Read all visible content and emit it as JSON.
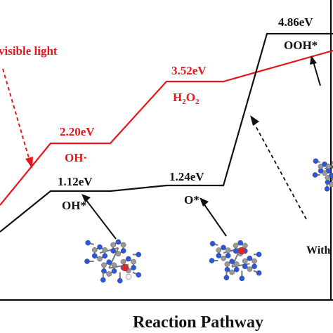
{
  "chart_data": {
    "type": "line",
    "style": "energy-step-diagram",
    "xlabel": "Reaction Pathway",
    "ylabel": "",
    "grid": false,
    "series": [
      {
        "color": "#e8161b",
        "levels": [
          {
            "value": 2.2,
            "energy_label": "2.20eV",
            "species_label": "OH·"
          },
          {
            "value": 3.52,
            "energy_label": "3.52eV",
            "species_label": "H2O2"
          }
        ]
      },
      {
        "color": "#111111",
        "levels": [
          {
            "value": 1.12,
            "energy_label": "1.12eV",
            "species_label": "OH*"
          },
          {
            "value": 1.24,
            "energy_label": "1.24eV",
            "species_label": "O*"
          },
          {
            "value": 4.86,
            "energy_label": "4.86eV",
            "species_label": "OOH*"
          }
        ]
      }
    ],
    "annotations": [
      {
        "text": "visible light",
        "color": "#e8161b"
      },
      {
        "text": "With",
        "color": "#111111"
      }
    ]
  },
  "colors": {
    "red_pathway": "#e8161b",
    "black_pathway": "#111111",
    "atom_nitrogen": "#2a55e0",
    "atom_carbon": "#9a9a9a",
    "atom_oxygen": "#d9272a",
    "atom_hydrogen": "#f2f2f2"
  }
}
